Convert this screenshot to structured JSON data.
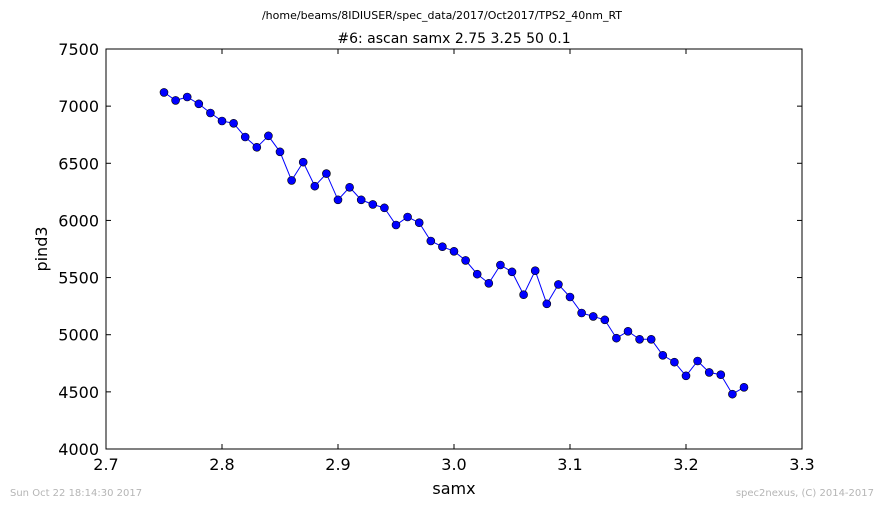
{
  "chart_data": {
    "type": "line",
    "suptitle": "/home/beams/8IDIUSER/spec_data/2017/Oct2017/TPS2_40nm_RT",
    "title": "#6: ascan  samx 2.75 3.25  50 0.1",
    "xlabel": "samx",
    "ylabel": "pind3",
    "xlim": [
      2.7,
      3.3
    ],
    "ylim": [
      4000,
      7500
    ],
    "xticks": [
      "2.7",
      "2.8",
      "2.9",
      "3.0",
      "3.1",
      "3.2",
      "3.3"
    ],
    "yticks": [
      "4000",
      "4500",
      "5000",
      "5500",
      "6000",
      "6500",
      "7000",
      "7500"
    ],
    "grid": false,
    "marker": "circle",
    "line_color": "#0000ff",
    "series": [
      {
        "x": [
          2.75,
          2.76,
          2.77,
          2.78,
          2.79,
          2.8,
          2.81,
          2.82,
          2.83,
          2.84,
          2.85,
          2.86,
          2.87,
          2.88,
          2.89,
          2.9,
          2.91,
          2.92,
          2.93,
          2.94,
          2.95,
          2.96,
          2.97,
          2.98,
          2.99,
          3.0,
          3.01,
          3.02,
          3.03,
          3.04,
          3.05,
          3.06,
          3.07,
          3.08,
          3.09,
          3.1,
          3.11,
          3.12,
          3.13,
          3.14,
          3.15,
          3.16,
          3.17,
          3.18,
          3.19,
          3.2,
          3.21,
          3.22,
          3.23,
          3.24,
          3.25
        ],
        "y": [
          7120,
          7050,
          7080,
          7020,
          6940,
          6870,
          6850,
          6730,
          6640,
          6740,
          6600,
          6350,
          6510,
          6300,
          6410,
          6180,
          6290,
          6180,
          6140,
          6110,
          5960,
          6030,
          5980,
          5820,
          5770,
          5730,
          5650,
          5530,
          5450,
          5610,
          5550,
          5350,
          5560,
          5270,
          5440,
          5330,
          5190,
          5160,
          5130,
          4970,
          5030,
          4960,
          4960,
          4820,
          4760,
          4640,
          4770,
          4670,
          4650,
          4480,
          4540
        ]
      }
    ]
  },
  "footer": {
    "left": "Sun Oct 22 18:14:30 2017",
    "right": "spec2nexus, (C) 2014-2017"
  }
}
